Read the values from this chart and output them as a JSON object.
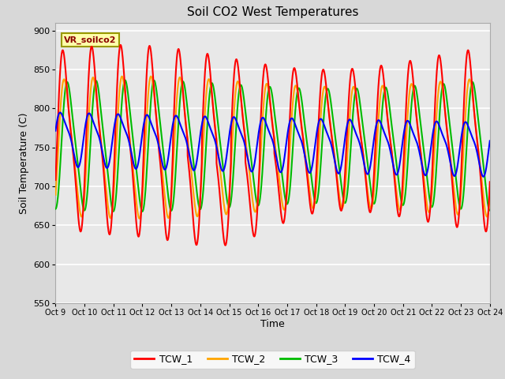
{
  "title": "Soil CO2 West Temperatures",
  "xlabel": "Time",
  "ylabel": "Soil Temperature (C)",
  "ylim": [
    550,
    910
  ],
  "xlim": [
    0,
    15
  ],
  "xtick_positions": [
    0,
    1,
    2,
    3,
    4,
    5,
    6,
    7,
    8,
    9,
    10,
    11,
    12,
    13,
    14,
    15
  ],
  "xtick_labels": [
    "Oct 9",
    "Oct 10",
    "Oct 11",
    "Oct 12",
    "Oct 13",
    "Oct 14",
    "Oct 15",
    "Oct 16",
    "Oct 17",
    "Oct 18",
    "Oct 19",
    "Oct 20",
    "Oct 21",
    "Oct 22",
    "Oct 23",
    "Oct 24"
  ],
  "annotation": "VR_soilco2",
  "annotation_color": "#8B0000",
  "annotation_bg": "#FFFFAA",
  "series_colors": {
    "TCW_1": "#FF0000",
    "TCW_2": "#FFA500",
    "TCW_3": "#00BB00",
    "TCW_4": "#0000FF"
  },
  "legend_labels": [
    "TCW_1",
    "TCW_2",
    "TCW_3",
    "TCW_4"
  ],
  "background_color": "#D8D8D8",
  "plot_bg": "#E8E8E8",
  "grid_color": "#FFFFFF",
  "title_fontsize": 11,
  "label_fontsize": 9,
  "tick_fontsize": 7,
  "linewidth": 1.5
}
